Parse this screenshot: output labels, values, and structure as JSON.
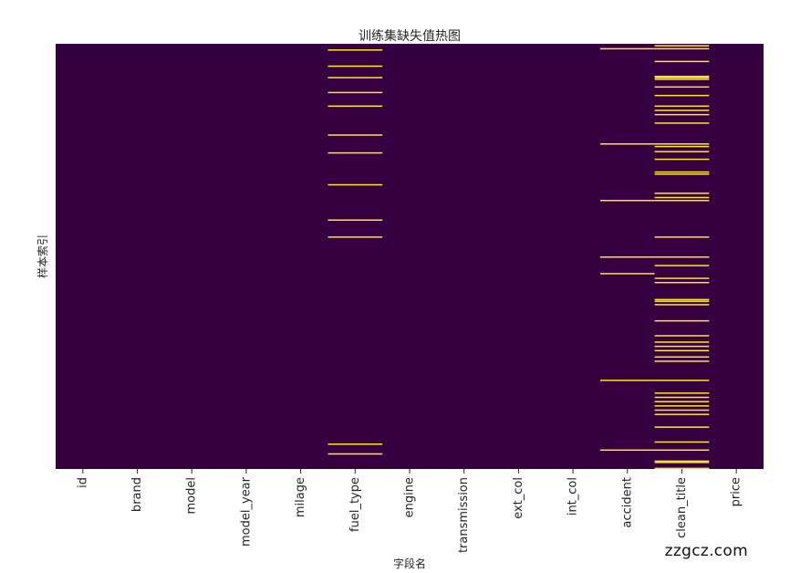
{
  "chart_data": {
    "type": "heatmap",
    "title": "训练集缺失值热图",
    "xlabel": "字段名",
    "ylabel": "样本索引",
    "columns": [
      "id",
      "brand",
      "model",
      "model_year",
      "milage",
      "fuel_type",
      "engine",
      "transmission",
      "ext_col",
      "int_col",
      "accident",
      "clean_title",
      "price"
    ],
    "missing_rows": {
      "fuel_type": [
        0.013,
        0.051,
        0.078,
        0.113,
        0.145,
        0.213,
        0.255,
        0.33,
        0.413,
        0.453,
        0.94,
        0.963
      ],
      "accident": [
        0.01,
        0.234,
        0.367,
        0.5,
        0.539,
        0.79,
        0.954
      ],
      "clean_title": [
        0.003,
        0.01,
        0.04,
        0.075,
        0.078,
        0.082,
        0.1,
        0.12,
        0.145,
        0.155,
        0.165,
        0.185,
        0.234,
        0.24,
        0.252,
        0.27,
        0.3,
        0.305,
        0.35,
        0.36,
        0.367,
        0.453,
        0.5,
        0.5,
        0.52,
        0.55,
        0.56,
        0.6,
        0.604,
        0.612,
        0.65,
        0.685,
        0.7,
        0.71,
        0.72,
        0.735,
        0.745,
        0.79,
        0.82,
        0.83,
        0.84,
        0.85,
        0.86,
        0.87,
        0.9,
        0.935,
        0.954,
        0.98,
        0.983,
        0.997
      ]
    },
    "colors": {
      "present": "#360040",
      "missing": "#fde725"
    },
    "colorbar": false
  },
  "watermark": "zzgcz.com"
}
